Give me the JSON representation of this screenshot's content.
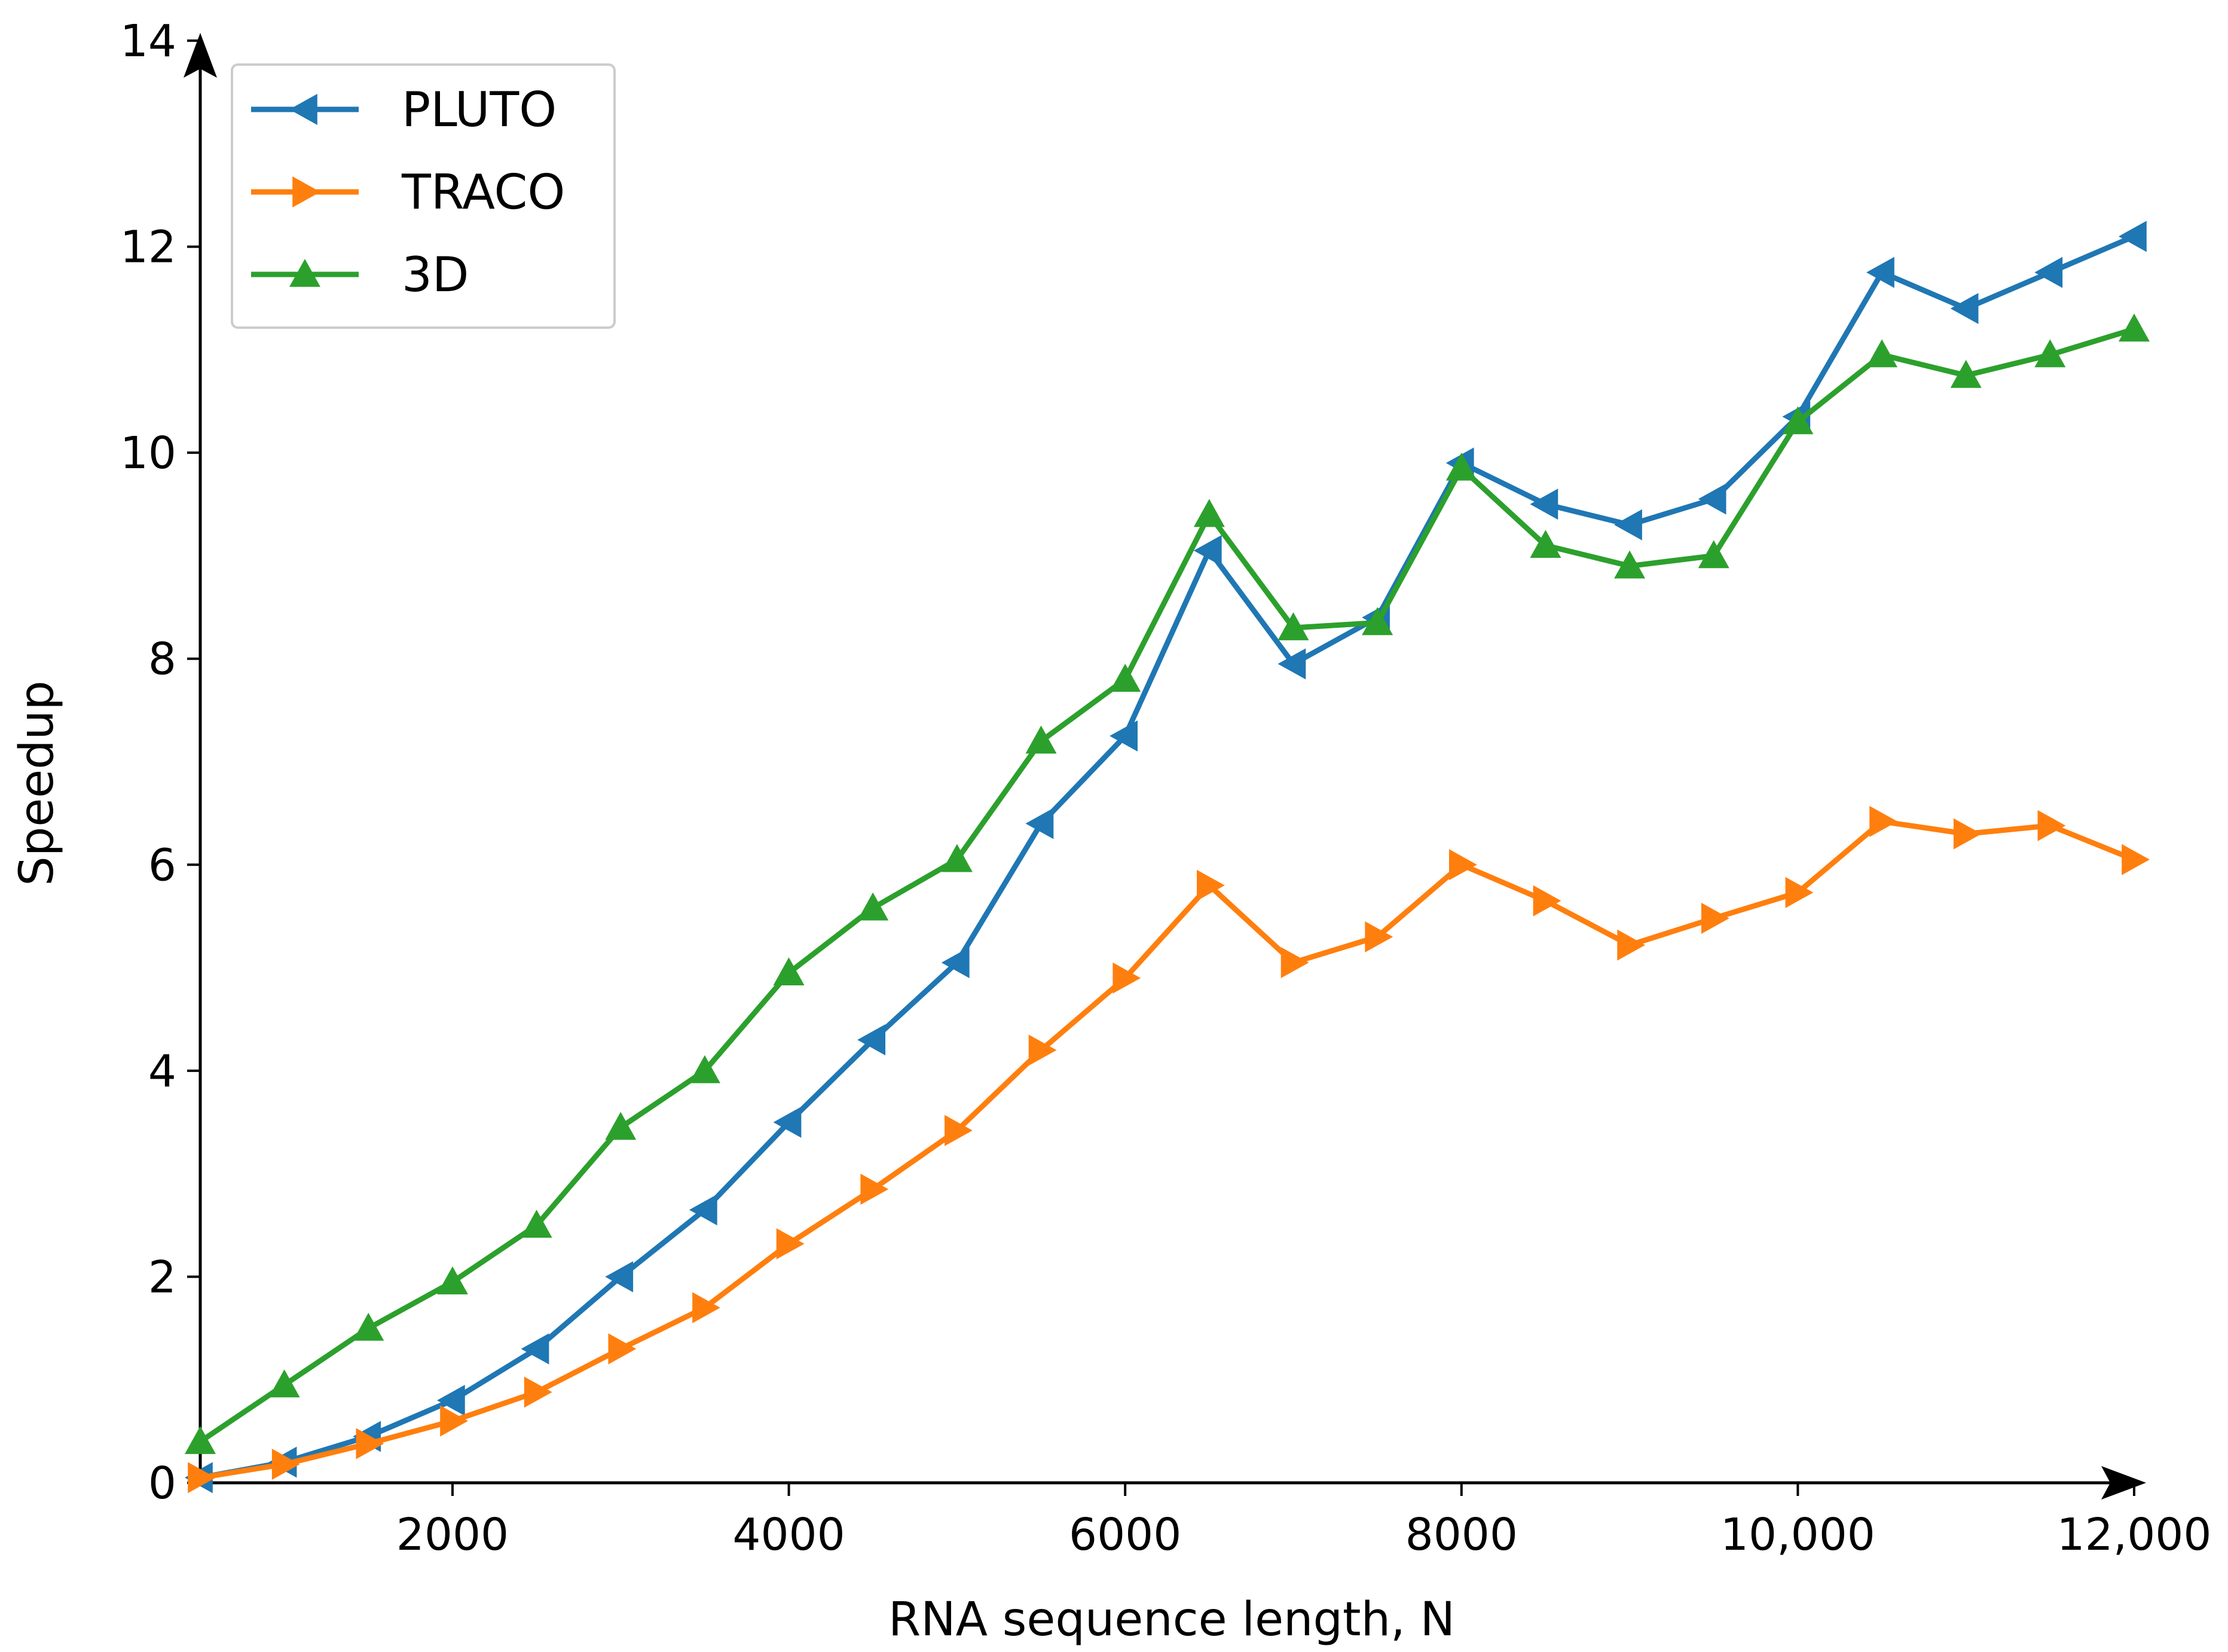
{
  "chart_data": {
    "type": "line",
    "title": "",
    "xlabel": "RNA sequence length, N",
    "ylabel": "Speedup",
    "xlim": [
      500,
      12000
    ],
    "ylim": [
      0,
      14
    ],
    "xticks": [
      {
        "value": 2000,
        "label": "2000"
      },
      {
        "value": 4000,
        "label": "4000"
      },
      {
        "value": 6000,
        "label": "6000"
      },
      {
        "value": 8000,
        "label": "8000"
      },
      {
        "value": 10000,
        "label": "10,000"
      },
      {
        "value": 12000,
        "label": "12,000"
      }
    ],
    "yticks": [
      {
        "value": 0,
        "label": "0"
      },
      {
        "value": 2,
        "label": "2"
      },
      {
        "value": 4,
        "label": "4"
      },
      {
        "value": 6,
        "label": "6"
      },
      {
        "value": 8,
        "label": "8"
      },
      {
        "value": 10,
        "label": "10"
      },
      {
        "value": 12,
        "label": "12"
      },
      {
        "value": 14,
        "label": "14"
      }
    ],
    "grid": false,
    "legend_position": "top-left",
    "x": [
      500,
      1000,
      1500,
      2000,
      2500,
      3000,
      3500,
      4000,
      4500,
      5000,
      5500,
      6000,
      6500,
      7000,
      7500,
      8000,
      8500,
      9000,
      9500,
      10000,
      10500,
      11000,
      11500,
      12000
    ],
    "series": [
      {
        "name": "PLUTO",
        "color": "#1f77b4",
        "marker": "triangle-left",
        "values": [
          0.05,
          0.2,
          0.45,
          0.8,
          1.3,
          2.0,
          2.65,
          3.5,
          4.3,
          5.05,
          6.4,
          7.25,
          9.05,
          7.95,
          8.4,
          9.9,
          9.5,
          9.3,
          9.55,
          10.35,
          11.75,
          11.4,
          11.75,
          12.1
        ]
      },
      {
        "name": "TRACO",
        "color": "#ff7f0e",
        "marker": "triangle-right",
        "values": [
          0.05,
          0.18,
          0.38,
          0.6,
          0.88,
          1.3,
          1.7,
          2.32,
          2.85,
          3.42,
          4.2,
          4.9,
          5.8,
          5.05,
          5.3,
          6.0,
          5.65,
          5.22,
          5.48,
          5.73,
          6.42,
          6.3,
          6.38,
          6.05
        ]
      },
      {
        "name": "3D",
        "color": "#2ca02c",
        "marker": "triangle-up",
        "values": [
          0.4,
          0.95,
          1.5,
          1.95,
          2.5,
          3.45,
          4.0,
          4.95,
          5.58,
          6.05,
          7.2,
          7.8,
          9.4,
          8.3,
          8.35,
          9.85,
          9.1,
          8.9,
          9.0,
          10.3,
          10.95,
          10.75,
          10.95,
          11.2
        ]
      }
    ]
  }
}
